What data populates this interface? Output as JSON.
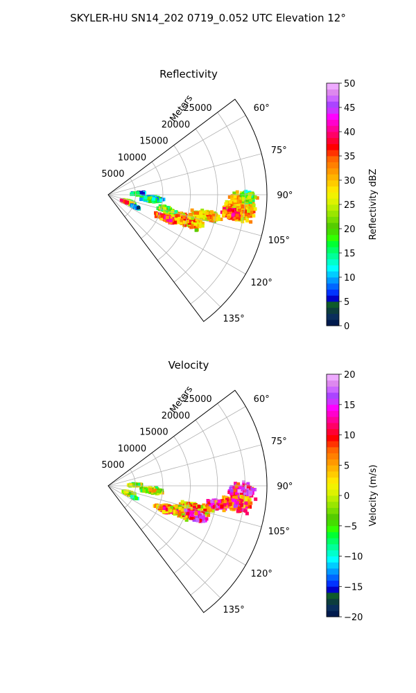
{
  "figure": {
    "title": "SKYLER-HU  SN14_202  0719_0.052 UTC Elevation 12°"
  },
  "chart_data": [
    {
      "type": "heatmap",
      "subtype": "polar-sector",
      "title": "Reflectivity",
      "radial_label": "Meters",
      "radial_ticks": [
        5000,
        10000,
        15000,
        20000,
        25000
      ],
      "radial_tick_labels": [
        "5000",
        "10000",
        "15000",
        "20000",
        "25000"
      ],
      "r_max": 29000,
      "theta_range_deg": [
        53,
        143
      ],
      "theta_ticks": [
        60,
        75,
        90,
        105,
        120,
        135
      ],
      "theta_tick_labels": [
        "60°",
        "75°",
        "90°",
        "105°",
        "120°",
        "135°"
      ],
      "grid": true,
      "colorbar": {
        "label": "Reflectivity dBZ",
        "range": [
          0,
          50
        ],
        "ticks": [
          0,
          5,
          10,
          15,
          20,
          25,
          30,
          35,
          40,
          45,
          50
        ],
        "tick_labels": [
          "0",
          "5",
          "10",
          "15",
          "20",
          "25",
          "30",
          "35",
          "40",
          "45",
          "50"
        ],
        "colormap": [
          "#001a4d",
          "#0a2e5c",
          "#0d3d3d",
          "#0f5a2a",
          "#0000c8",
          "#0033ff",
          "#0066ff",
          "#0099ff",
          "#00ccff",
          "#00ffff",
          "#00ffcc",
          "#00ff99",
          "#00ff66",
          "#00ff33",
          "#33ff00",
          "#44dd00",
          "#55cc00",
          "#77dd00",
          "#99e600",
          "#bbee00",
          "#ddf200",
          "#f2f200",
          "#ffe600",
          "#ffcc00",
          "#ffb300",
          "#ff9900",
          "#ff8000",
          "#ff6600",
          "#ff3300",
          "#ff0000",
          "#ff0033",
          "#ff0066",
          "#ff0099",
          "#ff00cc",
          "#ff00ff",
          "#cc33ff",
          "#aa44ff",
          "#cc66ff",
          "#dd88ee",
          "#eeaaff"
        ]
      },
      "echoes": [
        {
          "theta": 95,
          "r": 24500,
          "dr": 3600,
          "dt": 7,
          "value": 32
        },
        {
          "theta": 99,
          "r": 23000,
          "dr": 2200,
          "dt": 3,
          "value": 38
        },
        {
          "theta": 91,
          "r": 25500,
          "dr": 1500,
          "dt": 3,
          "value": 22
        },
        {
          "theta": 102,
          "r": 18500,
          "dr": 3500,
          "dt": 3,
          "value": 31
        },
        {
          "theta": 108,
          "r": 14500,
          "dr": 4500,
          "dt": 5,
          "value": 33
        },
        {
          "theta": 112,
          "r": 11500,
          "dr": 2500,
          "dt": 3,
          "value": 37
        },
        {
          "theta": 104,
          "r": 11000,
          "dr": 2000,
          "dt": 3,
          "value": 22
        },
        {
          "theta": 96,
          "r": 8000,
          "dr": 2500,
          "dt": 4,
          "value": 18
        },
        {
          "theta": 88,
          "r": 5500,
          "dr": 1500,
          "dt": 3,
          "value": 16
        },
        {
          "theta": 110,
          "r": 4000,
          "dr": 1500,
          "dt": 5,
          "value": 27
        },
        {
          "theta": 113,
          "r": 3200,
          "dr": 800,
          "dt": 2,
          "value": 38
        },
        {
          "theta": 114,
          "r": 5500,
          "dr": 1000,
          "dt": 2,
          "value": 12
        }
      ]
    },
    {
      "type": "heatmap",
      "subtype": "polar-sector",
      "title": "Velocity",
      "radial_label": "Meters",
      "radial_ticks": [
        5000,
        10000,
        15000,
        20000,
        25000
      ],
      "radial_tick_labels": [
        "5000",
        "10000",
        "15000",
        "20000",
        "25000"
      ],
      "r_max": 29000,
      "theta_range_deg": [
        53,
        143
      ],
      "theta_ticks": [
        60,
        75,
        90,
        105,
        120,
        135
      ],
      "theta_tick_labels": [
        "60°",
        "75°",
        "90°",
        "105°",
        "120°",
        "135°"
      ],
      "grid": true,
      "colorbar": {
        "label": "Velocity (m/s)",
        "range": [
          -20,
          20
        ],
        "ticks": [
          -20,
          -15,
          -10,
          -5,
          0,
          5,
          10,
          15,
          20
        ],
        "tick_labels": [
          "−20",
          "−15",
          "−10",
          "−5",
          "0",
          "5",
          "10",
          "15",
          "20"
        ],
        "colormap": [
          "#001a4d",
          "#0a2e5c",
          "#0d3d3d",
          "#0f5a2a",
          "#0000c8",
          "#0033ff",
          "#0066ff",
          "#0099ff",
          "#00ccff",
          "#00ffff",
          "#00ffcc",
          "#00ff99",
          "#00ff66",
          "#00ff33",
          "#33ff00",
          "#44dd00",
          "#55cc00",
          "#77dd00",
          "#99e600",
          "#bbee00",
          "#ddf200",
          "#f2f200",
          "#ffe600",
          "#ffcc00",
          "#ffb300",
          "#ff9900",
          "#ff8000",
          "#ff6600",
          "#ff3300",
          "#ff0000",
          "#ff0033",
          "#ff0066",
          "#ff0099",
          "#ff00cc",
          "#ff00ff",
          "#cc33ff",
          "#aa44ff",
          "#cc66ff",
          "#dd88ee",
          "#eeaaff"
        ]
      },
      "echoes": [
        {
          "theta": 92,
          "r": 24500,
          "dr": 2800,
          "dt": 4,
          "value": 16
        },
        {
          "theta": 98,
          "r": 23500,
          "dr": 3200,
          "dt": 4,
          "value": 11
        },
        {
          "theta": 100,
          "r": 20000,
          "dr": 2500,
          "dt": 3,
          "value": 14
        },
        {
          "theta": 105,
          "r": 16500,
          "dr": 3500,
          "dt": 4,
          "value": 7
        },
        {
          "theta": 110,
          "r": 13500,
          "dr": 3500,
          "dt": 4,
          "value": 6
        },
        {
          "theta": 113,
          "r": 11000,
          "dr": 2000,
          "dt": 3,
          "value": 10
        },
        {
          "theta": 109,
          "r": 17000,
          "dr": 2500,
          "dt": 3,
          "value": 16
        },
        {
          "theta": 96,
          "r": 8000,
          "dr": 2500,
          "dt": 4,
          "value": 3
        },
        {
          "theta": 88,
          "r": 5000,
          "dr": 1500,
          "dt": 3,
          "value": 1
        },
        {
          "theta": 110,
          "r": 4000,
          "dr": 1500,
          "dt": 5,
          "value": 2
        },
        {
          "theta": 114,
          "r": 5200,
          "dr": 800,
          "dt": 2,
          "value": -2
        }
      ]
    }
  ]
}
